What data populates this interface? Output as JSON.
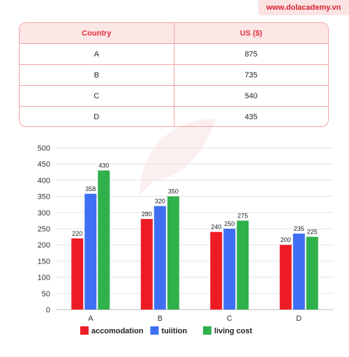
{
  "brand": "www.dolacademy.vn",
  "colors": {
    "accent": "#e0323c",
    "table_header_bg": "#fce6e6",
    "border": "#f1a3a3"
  },
  "table": {
    "headers": [
      "Country",
      "US ($)"
    ],
    "rows": [
      [
        "A",
        "875"
      ],
      [
        "B",
        "735"
      ],
      [
        "C",
        "540"
      ],
      [
        "D",
        "435"
      ]
    ]
  },
  "chart_data": {
    "type": "bar",
    "categories": [
      "A",
      "B",
      "C",
      "D"
    ],
    "series": [
      {
        "name": "accomodation",
        "color": "#ee1c24",
        "values": [
          220,
          280,
          240,
          200
        ],
        "labels": [
          "220",
          "280",
          "240",
          "200"
        ]
      },
      {
        "name": "tuiition",
        "color": "#3f6ff2",
        "values": [
          358,
          320,
          250,
          235
        ],
        "labels": [
          "358",
          "320",
          "250",
          "235"
        ]
      },
      {
        "name": "living cost",
        "color": "#2fb14b",
        "values": [
          430,
          350,
          275,
          225
        ],
        "labels": [
          "430",
          "350",
          "275",
          "225"
        ]
      }
    ],
    "ylim": [
      0,
      500
    ],
    "yticks": [
      "0",
      "50",
      "100",
      "150",
      "200",
      "250",
      "300",
      "350",
      "400",
      "450",
      "500"
    ],
    "grid": true,
    "legend": "bottom"
  }
}
